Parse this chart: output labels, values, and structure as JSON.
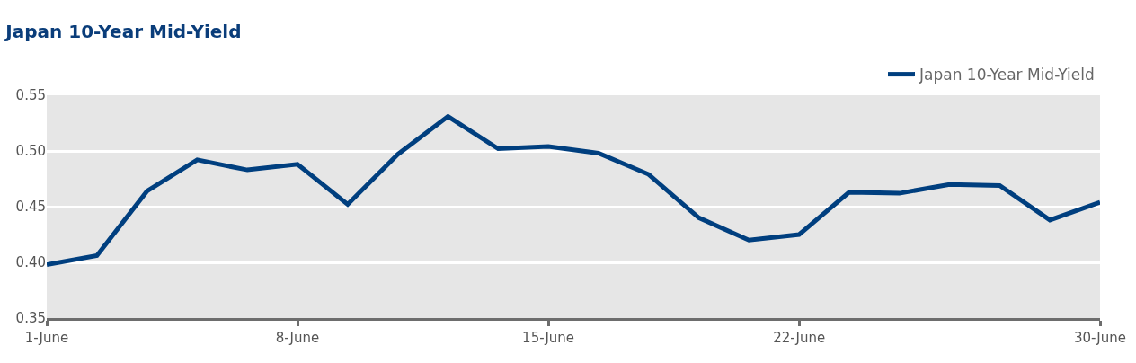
{
  "chart_data": {
    "type": "line",
    "title": "Japan 10-Year Mid-Yield",
    "categories": [
      "1-June",
      null,
      null,
      null,
      null,
      "8-June",
      null,
      null,
      null,
      null,
      "15-June",
      null,
      null,
      null,
      null,
      "22-June",
      null,
      null,
      null,
      null,
      null,
      "30-June"
    ],
    "series": [
      {
        "name": "Japan 10-Year Mid-Yield",
        "color": "#003f7f",
        "values": [
          0.398,
          0.406,
          0.464,
          0.492,
          0.483,
          0.488,
          0.452,
          0.497,
          0.531,
          0.502,
          0.504,
          0.498,
          0.479,
          0.44,
          0.42,
          0.425,
          0.463,
          0.462,
          0.47,
          0.469,
          0.438,
          0.454
        ]
      }
    ],
    "ylim": [
      0.35,
      0.55
    ],
    "yticks": [
      {
        "value": 0.35,
        "label": "0.35"
      },
      {
        "value": 0.4,
        "label": "0.40"
      },
      {
        "value": 0.45,
        "label": "0.45"
      },
      {
        "value": 0.5,
        "label": "0.50"
      },
      {
        "value": 0.55,
        "label": "0.55"
      }
    ],
    "grid": "y",
    "legend": "top right",
    "marker": "none",
    "line_style": "solid"
  }
}
